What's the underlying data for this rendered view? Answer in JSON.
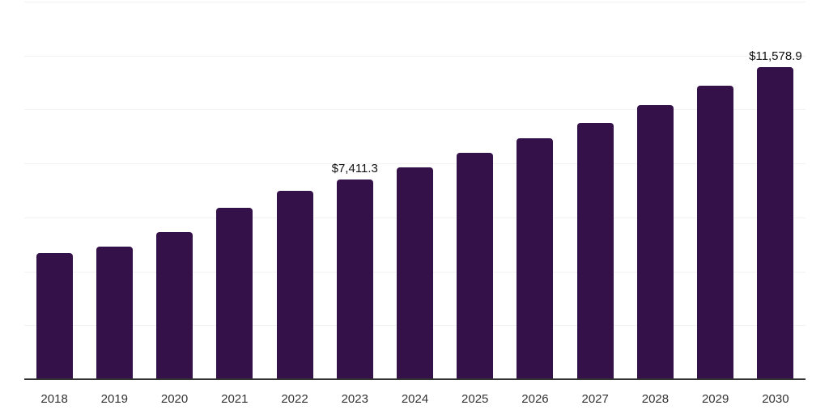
{
  "chart_data": {
    "type": "bar",
    "title": "",
    "xlabel": "",
    "ylabel": "",
    "ylim": [
      0,
      14000
    ],
    "gridline_step": 2000,
    "grid": true,
    "legend": "none",
    "value_prefix": "$",
    "categories": [
      "2018",
      "2019",
      "2020",
      "2021",
      "2022",
      "2023",
      "2024",
      "2025",
      "2026",
      "2027",
      "2028",
      "2029",
      "2030"
    ],
    "values": [
      4690,
      4930,
      5460,
      6365,
      6990,
      7411.3,
      7855,
      8380,
      8920,
      9515,
      10155,
      10875,
      11578.9
    ],
    "data_labels": [
      {
        "index": 5,
        "text": "$7,411.3"
      },
      {
        "index": 12,
        "text": "$11,578.9"
      }
    ]
  },
  "colors": {
    "bar": "#35114a",
    "grid": "#f2f2f2",
    "axis": "#333333",
    "tick_label": "#333333",
    "data_label": "#111111",
    "background": "#ffffff"
  }
}
